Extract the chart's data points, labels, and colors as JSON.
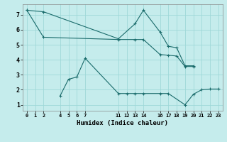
{
  "title": "",
  "xlabel": "Humidex (Indice chaleur)",
  "bg_color": "#c5ecec",
  "line_color": "#1a6b6b",
  "grid_color": "#9fd8d8",
  "xlim": [
    -0.5,
    23.5
  ],
  "ylim": [
    0.6,
    7.7
  ],
  "xticks": [
    0,
    1,
    2,
    4,
    5,
    6,
    7,
    11,
    12,
    13,
    14,
    16,
    17,
    18,
    19,
    20,
    21,
    22,
    23
  ],
  "yticks": [
    1,
    2,
    3,
    4,
    5,
    6,
    7
  ],
  "line1_x": [
    0,
    2,
    11,
    13,
    14,
    16,
    17,
    18,
    19,
    20
  ],
  "line1_y": [
    7.3,
    7.2,
    5.4,
    6.4,
    7.3,
    5.85,
    4.9,
    4.8,
    3.6,
    3.6
  ],
  "line2_x": [
    0,
    2,
    11,
    13,
    14,
    16,
    17,
    18,
    19,
    20
  ],
  "line2_y": [
    7.3,
    5.5,
    5.35,
    5.35,
    5.35,
    4.35,
    4.3,
    4.25,
    3.55,
    3.55
  ],
  "line3_x": [
    4,
    5,
    6,
    7,
    11,
    12,
    13,
    14,
    16,
    17,
    19,
    20,
    21,
    22,
    23
  ],
  "line3_y": [
    1.6,
    2.7,
    2.85,
    4.1,
    1.75,
    1.75,
    1.75,
    1.75,
    1.75,
    1.75,
    1.0,
    1.7,
    2.0,
    2.05,
    2.05
  ]
}
